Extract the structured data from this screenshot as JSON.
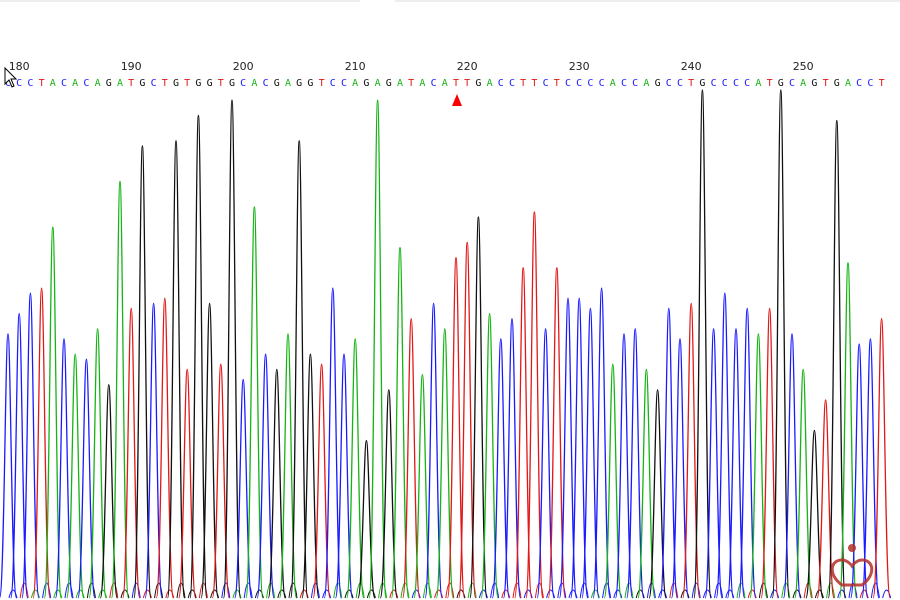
{
  "positions": [
    180,
    190,
    200,
    210,
    220,
    230,
    240,
    250
  ],
  "sequence": [
    "C",
    "C",
    "C",
    "T",
    "A",
    "C",
    "A",
    "C",
    "A",
    "G",
    "A",
    "T",
    "G",
    "C",
    "T",
    "G",
    "T",
    "G",
    "G",
    "T",
    "G",
    "C",
    "A",
    "C",
    "G",
    "A",
    "G",
    "G",
    "T",
    "C",
    "C",
    "A",
    "G",
    "A",
    "G",
    "A",
    "T",
    "A",
    "C",
    "A",
    "T",
    "T",
    "G",
    "A",
    "C",
    "C",
    "T",
    "T",
    "C",
    "T",
    "C",
    "C",
    "C",
    "C",
    "A",
    "C",
    "C",
    "A",
    "G",
    "C",
    "C",
    "T",
    "G",
    "C",
    "C",
    "C",
    "C",
    "A",
    "T",
    "G",
    "C",
    "A",
    "G",
    "T",
    "G",
    "A",
    "C",
    "C",
    "T"
  ],
  "signal": [
    52,
    56,
    60,
    61,
    73,
    51,
    48,
    47,
    53,
    42,
    82,
    57,
    89,
    58,
    59,
    90,
    45,
    95,
    58,
    46,
    98,
    43,
    77,
    48,
    45,
    52,
    90,
    48,
    46,
    61,
    48,
    51,
    31,
    98,
    41,
    69,
    55,
    44,
    58,
    53,
    67,
    70,
    75,
    56,
    51,
    55,
    65,
    76,
    53,
    65,
    59,
    59,
    57,
    61,
    46,
    52,
    53,
    45,
    41,
    57,
    51,
    58,
    100,
    53,
    60,
    53,
    57,
    52,
    57,
    100,
    52,
    45,
    33,
    39,
    94,
    66,
    50,
    51,
    55
  ],
  "signal_max": 100,
  "colors": {
    "A": "#16b316",
    "C": "#1a1aff",
    "G": "#111111",
    "T": "#e01818"
  }
}
